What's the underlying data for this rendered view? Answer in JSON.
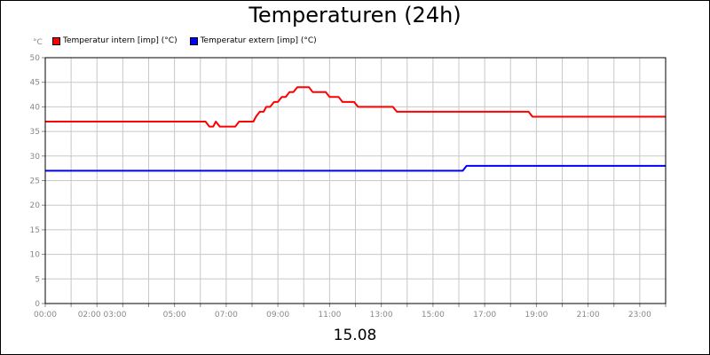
{
  "chart_data": {
    "type": "line",
    "title": "Temperaturen (24h)",
    "xlabel": "15.08",
    "ylabel": "°C",
    "ylim": [
      0,
      50
    ],
    "xlim": [
      0,
      24
    ],
    "y_ticks": [
      0,
      5,
      10,
      15,
      20,
      25,
      30,
      35,
      40,
      45,
      50
    ],
    "x_ticks": [
      {
        "value": 0,
        "label": "00:00"
      },
      {
        "value": 2.2,
        "label": "02:00 03:00"
      },
      {
        "value": 5,
        "label": "05:00"
      },
      {
        "value": 7,
        "label": "07:00"
      },
      {
        "value": 9,
        "label": "09:00"
      },
      {
        "value": 11,
        "label": "11:00"
      },
      {
        "value": 13,
        "label": "13:00"
      },
      {
        "value": 15,
        "label": "15:00"
      },
      {
        "value": 17,
        "label": "17:00"
      },
      {
        "value": 19,
        "label": "19:00"
      },
      {
        "value": 21,
        "label": "21:00"
      },
      {
        "value": 23,
        "label": "23:00"
      }
    ],
    "grid": true,
    "legend": "top-left",
    "series": [
      {
        "name": "Temperatur intern [imp] (°C)",
        "color": "#ff0000",
        "x": [
          0,
          6.2,
          6.35,
          6.5,
          6.6,
          6.75,
          7.35,
          7.5,
          8.05,
          8.15,
          8.3,
          8.45,
          8.55,
          8.7,
          8.85,
          9.0,
          9.15,
          9.3,
          9.45,
          9.6,
          9.75,
          10.2,
          10.35,
          10.85,
          11.0,
          11.35,
          11.5,
          11.95,
          12.1,
          13.45,
          13.6,
          18.7,
          18.85,
          24.0
        ],
        "values": [
          37,
          37,
          36,
          36,
          37,
          36,
          36,
          37,
          37,
          38,
          39,
          39,
          40,
          40,
          41,
          41,
          42,
          42,
          43,
          43,
          44,
          44,
          43,
          43,
          42,
          42,
          41,
          41,
          40,
          40,
          39,
          39,
          38,
          38
        ]
      },
      {
        "name": "Temperatur extern [imp] (°C)",
        "color": "#0000ff",
        "x": [
          0,
          16.15,
          16.3,
          24.0
        ],
        "values": [
          27,
          27,
          28,
          28
        ]
      }
    ]
  }
}
